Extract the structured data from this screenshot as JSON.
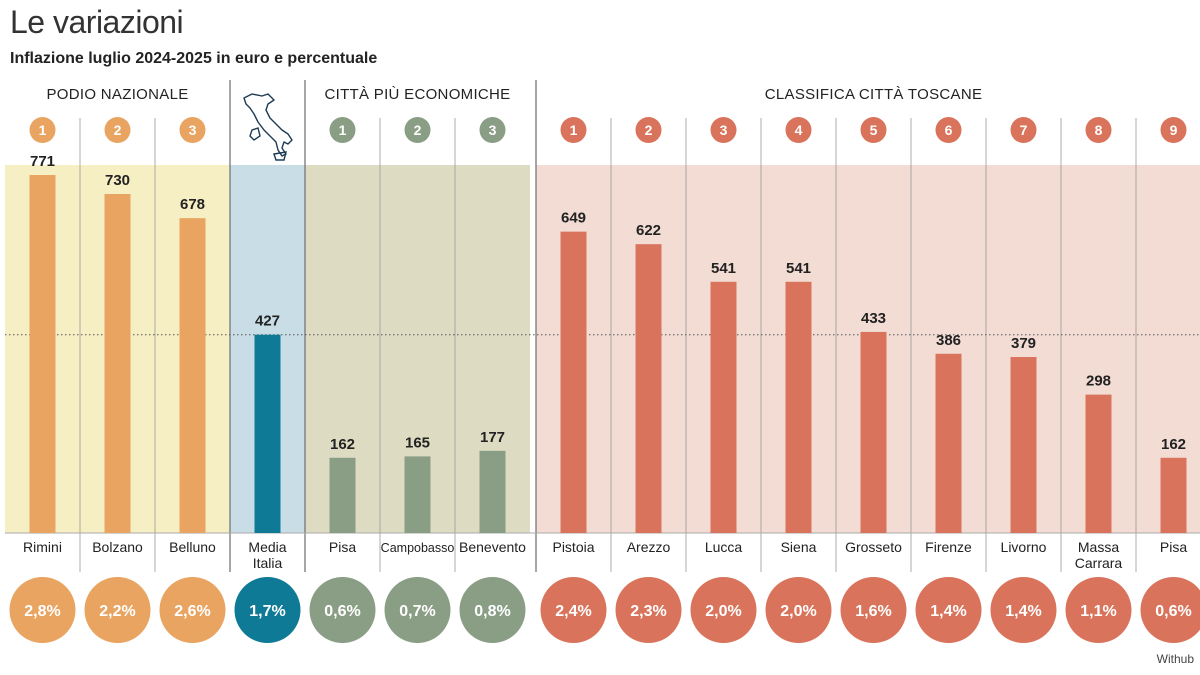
{
  "title": "Le variazioni",
  "subtitle": "Inflazione luglio 2024-2025 in euro e percentuale",
  "credit": "Withub",
  "colors": {
    "orange": "#e8a460",
    "orange_bg": "#f7efc4",
    "blue": "#0e7a96",
    "blue_bg": "#c8dde6",
    "green": "#8a9e86",
    "green_bg": "#dddcc2",
    "red": "#d9735b",
    "red_bg": "#f2dcd3"
  },
  "chart_data": {
    "type": "bar",
    "title": "Le variazioni",
    "subtitle": "Inflazione luglio 2024-2025 in euro e percentuale",
    "ylim": [
      0,
      800
    ],
    "reference_line": 427,
    "groups": [
      {
        "name": "PODIO NAZIONALE",
        "color": "orange",
        "items": [
          {
            "rank": "1",
            "city": [
              "Rimini"
            ],
            "value": 771,
            "pct": "2,8%"
          },
          {
            "rank": "2",
            "city": [
              "Bolzano"
            ],
            "value": 730,
            "pct": "2,2%"
          },
          {
            "rank": "3",
            "city": [
              "Belluno"
            ],
            "value": 678,
            "pct": "2,6%"
          }
        ]
      },
      {
        "name": "",
        "color": "blue",
        "map_icon": "italy-map-icon",
        "items": [
          {
            "rank": "",
            "city": [
              "Media",
              "Italia"
            ],
            "value": 427,
            "pct": "1,7%"
          }
        ]
      },
      {
        "name": "CITTÀ PIÙ ECONOMICHE",
        "color": "green",
        "items": [
          {
            "rank": "1",
            "city": [
              "Pisa"
            ],
            "value": 162,
            "pct": "0,6%"
          },
          {
            "rank": "2",
            "city": [
              "Campobasso"
            ],
            "value": 165,
            "pct": "0,7%"
          },
          {
            "rank": "3",
            "city": [
              "Benevento"
            ],
            "value": 177,
            "pct": "0,8%"
          }
        ]
      },
      {
        "name": "CLASSIFICA CITTÀ TOSCANE",
        "color": "red",
        "items": [
          {
            "rank": "1",
            "city": [
              "Pistoia"
            ],
            "value": 649,
            "pct": "2,4%"
          },
          {
            "rank": "2",
            "city": [
              "Arezzo"
            ],
            "value": 622,
            "pct": "2,3%"
          },
          {
            "rank": "3",
            "city": [
              "Lucca"
            ],
            "value": 541,
            "pct": "2,0%"
          },
          {
            "rank": "4",
            "city": [
              "Siena"
            ],
            "value": 541,
            "pct": "2,0%"
          },
          {
            "rank": "5",
            "city": [
              "Grosseto"
            ],
            "value": 433,
            "pct": "1,6%"
          },
          {
            "rank": "6",
            "city": [
              "Firenze"
            ],
            "value": 386,
            "pct": "1,4%"
          },
          {
            "rank": "7",
            "city": [
              "Livorno"
            ],
            "value": 379,
            "pct": "1,4%"
          },
          {
            "rank": "8",
            "city": [
              "Massa",
              "Carrara"
            ],
            "value": 298,
            "pct": "1,1%"
          },
          {
            "rank": "9",
            "city": [
              "Pisa"
            ],
            "value": 162,
            "pct": "0,6%"
          }
        ]
      }
    ]
  }
}
